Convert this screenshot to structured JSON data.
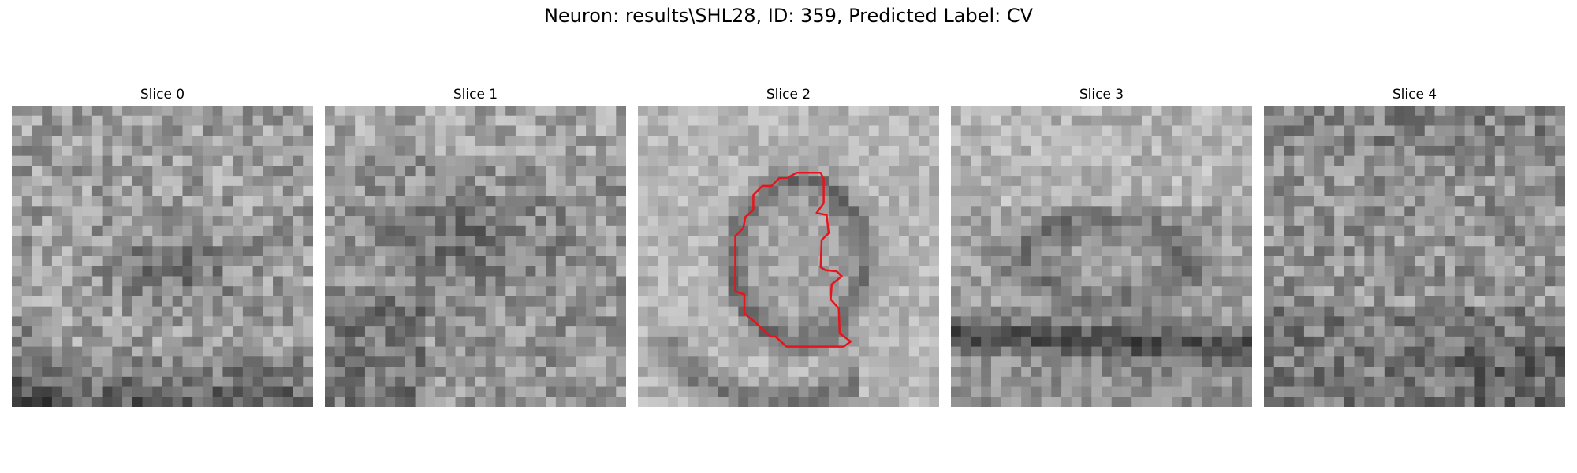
{
  "figure": {
    "title": "Neuron: results\\SHL28, ID: 359, Predicted Label: CV"
  },
  "slices": [
    {
      "label": "Slice 0"
    },
    {
      "label": "Slice 1"
    },
    {
      "label": "Slice 2"
    },
    {
      "label": "Slice 3"
    },
    {
      "label": "Slice 4"
    }
  ],
  "colors": {
    "contour": "#e8141c",
    "background": "#ffffff"
  }
}
